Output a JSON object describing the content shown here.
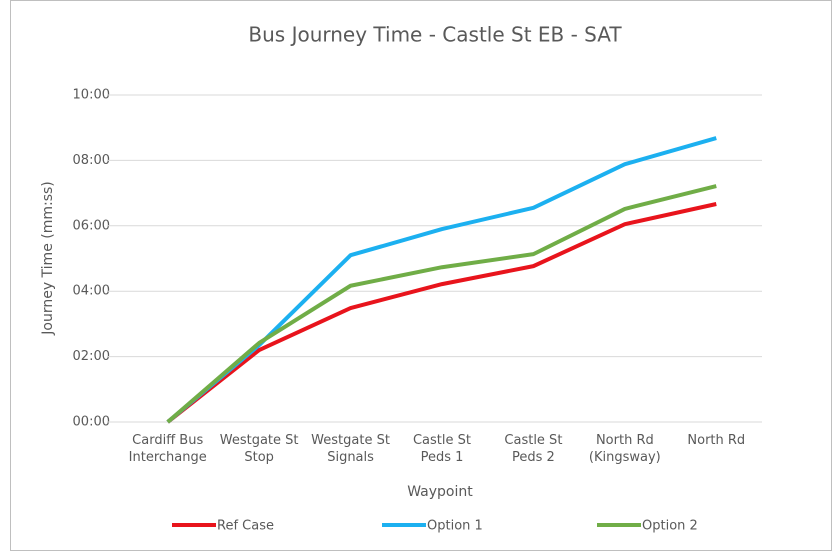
{
  "chart_data": {
    "type": "line",
    "title": "Bus Journey Time - Castle St EB - SAT",
    "x_label": "Waypoint",
    "y_label": "Journey Time (mm:ss)",
    "categories": [
      "Cardiff Bus Interchange",
      "Westgate St Stop",
      "Westgate St Signals",
      "Castle St Peds 1",
      "Castle St Peds 2",
      "North Rd (Kingsway)",
      "North Rd"
    ],
    "series": [
      {
        "name": "Ref Case",
        "color": "#e8141c",
        "values": [
          0,
          132,
          209,
          253,
          286,
          363,
          400
        ]
      },
      {
        "name": "Option 1",
        "color": "#1cb0f0",
        "values": [
          0,
          141,
          306,
          354,
          393,
          473,
          521
        ]
      },
      {
        "name": "Option 2",
        "color": "#70ad47",
        "values": [
          0,
          145,
          250,
          284,
          308,
          391,
          433
        ]
      }
    ],
    "ylim": [
      0,
      600
    ],
    "yticks": [
      {
        "value": 0,
        "label": "00:00"
      },
      {
        "value": 120,
        "label": "02:00"
      },
      {
        "value": 240,
        "label": "04:00"
      },
      {
        "value": 360,
        "label": "06:00"
      },
      {
        "value": 480,
        "label": "08:00"
      },
      {
        "value": 600,
        "label": "10:00"
      }
    ],
    "grid": true,
    "legend": "bottom"
  }
}
